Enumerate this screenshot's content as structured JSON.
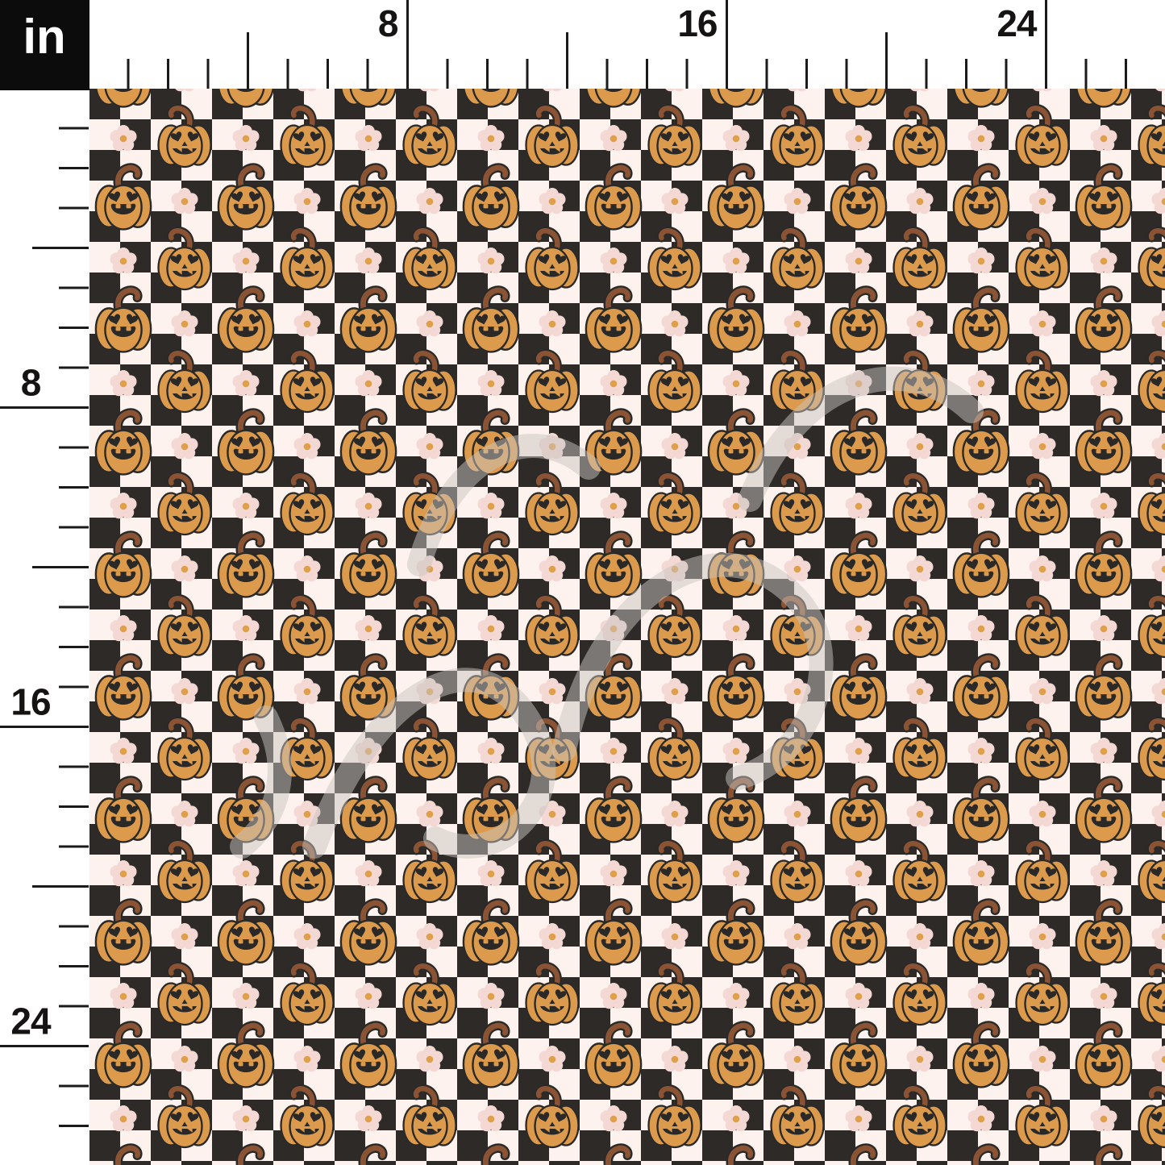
{
  "unit_box": {
    "label": "in"
  },
  "ruler": {
    "top_labels": [
      {
        "text": "8",
        "inch": 8
      },
      {
        "text": "16",
        "inch": 16
      },
      {
        "text": "24",
        "inch": 24
      }
    ],
    "left_labels": [
      {
        "text": "8",
        "inch": 8
      },
      {
        "text": "16",
        "inch": 16
      },
      {
        "text": "24",
        "inch": 24
      }
    ]
  },
  "swatch": {
    "description": "Black and cream checkerboard fabric swatch with smiling heart-eyed jack-o-lantern pumpkins and pink retro daisy flowers, shown against inch rulers",
    "motifs": [
      "checkerboard",
      "jack-o-lantern-pumpkin",
      "retro-daisy-flower"
    ],
    "colors": {
      "cream": "#fdf2ed",
      "charcoal": "#2d2a28",
      "pumpkin_orange": "#dc9a4d",
      "stem_brown": "#8a5434",
      "outline": "#2b2927",
      "petal_pink": "#f3d8d4",
      "flower_center": "#e0a04a",
      "watermark_gray": "#c9c4c0",
      "ruler_ink": "#1a1a1a",
      "ruler_bg": "#ffffff",
      "unit_box_bg": "#0c0c0c",
      "unit_box_text": "#ffffff"
    }
  }
}
